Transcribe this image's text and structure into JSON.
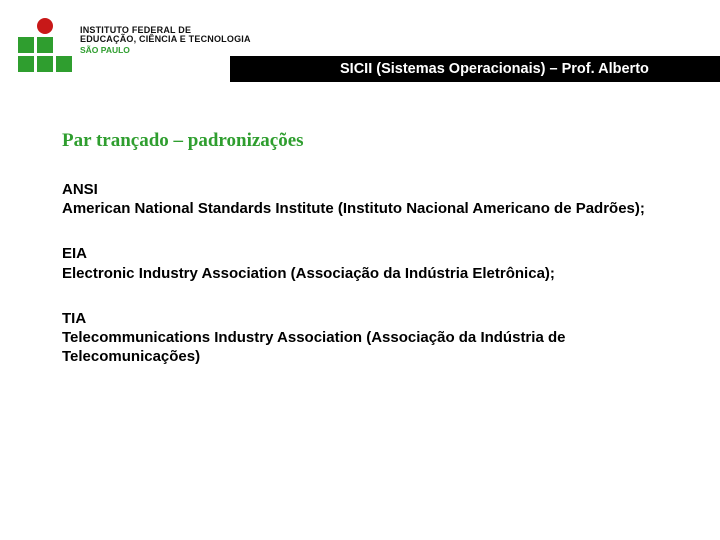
{
  "header": {
    "bar_text": "SICII (Sistemas Operacionais) – Prof. Alberto",
    "logo": {
      "line1": "INSTITUTO FEDERAL DE",
      "line2": "EDUCAÇÃO, CIÊNCIA E TECNOLOGIA",
      "line3": "SÃO PAULO",
      "square_color": "#2f9e2f",
      "circle_color": "#c81818"
    },
    "bar_bg": "#000000",
    "bar_fg": "#ffffff"
  },
  "section": {
    "title": "Par trançado – padronizações",
    "title_color": "#2f9e2f"
  },
  "entries": [
    {
      "abbr": "ANSI",
      "full": "American National Standards Institute  (Instituto Nacional Americano de Padrões);"
    },
    {
      "abbr": "EIA",
      "full": "Electronic Industry Association (Associação da Indústria Eletrônica);"
    },
    {
      "abbr": "TIA",
      "full": "Telecommunications Industry Association (Associação da Indústria de Telecomunicações)"
    }
  ],
  "colors": {
    "page_bg": "#ffffff",
    "text": "#000000"
  }
}
